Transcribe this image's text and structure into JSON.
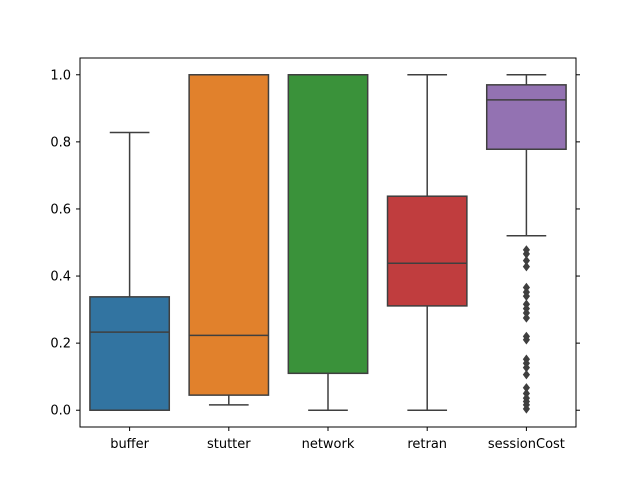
{
  "chart_data": {
    "type": "box",
    "title": "",
    "xlabel": "",
    "ylabel": "",
    "ylim": [
      -0.05,
      1.05
    ],
    "yticks": [
      0.0,
      0.2,
      0.4,
      0.6,
      0.8,
      1.0
    ],
    "ytick_labels": [
      "0.0",
      "0.2",
      "0.4",
      "0.6",
      "0.8",
      "1.0"
    ],
    "categories": [
      "buffer",
      "stutter",
      "network",
      "retran",
      "sessionCost"
    ],
    "boxes": [
      {
        "name": "buffer",
        "color": "#3274a1",
        "whisker_low": 0.0,
        "q1": 0.0,
        "median": 0.233,
        "q3": 0.338,
        "whisker_high": 0.828,
        "outliers": []
      },
      {
        "name": "stutter",
        "color": "#e1812c",
        "whisker_low": 0.016,
        "q1": 0.045,
        "median": 0.223,
        "q3": 1.0,
        "whisker_high": 1.0,
        "outliers": []
      },
      {
        "name": "network",
        "color": "#3a923a",
        "whisker_low": 0.0,
        "q1": 0.11,
        "median": 1.0,
        "q3": 1.0,
        "whisker_high": 1.0,
        "outliers": []
      },
      {
        "name": "retran",
        "color": "#c03d3e",
        "whisker_low": 0.0,
        "q1": 0.311,
        "median": 0.438,
        "q3": 0.638,
        "whisker_high": 1.0,
        "outliers": []
      },
      {
        "name": "sessionCost",
        "color": "#9372b2",
        "whisker_low": 0.52,
        "q1": 0.778,
        "median": 0.925,
        "q3": 0.97,
        "whisker_high": 1.0,
        "outliers": [
          0.478,
          0.466,
          0.446,
          0.428,
          0.366,
          0.352,
          0.34,
          0.316,
          0.303,
          0.29,
          0.275,
          0.22,
          0.21,
          0.152,
          0.14,
          0.127,
          0.106,
          0.067,
          0.05,
          0.036,
          0.026,
          0.016,
          0.004
        ]
      }
    ]
  }
}
